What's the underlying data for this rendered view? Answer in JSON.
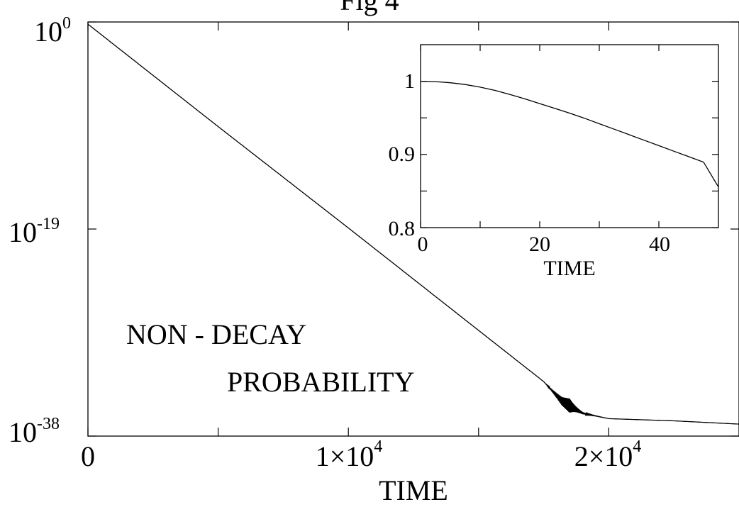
{
  "chart_data": [
    {
      "type": "line",
      "title": "Fig 4",
      "xlabel": "TIME",
      "ylabel": "",
      "y_scale": "log",
      "xlim": [
        0,
        25000
      ],
      "ylim_exponents": [
        -38,
        0
      ],
      "x_tick_values": [
        0,
        10000,
        20000
      ],
      "x_tick_labels": [
        {
          "mantissa": "0",
          "exponent": ""
        },
        {
          "mantissa": "1×10",
          "exponent": "4"
        },
        {
          "mantissa": "2×10",
          "exponent": "4"
        }
      ],
      "x_minor_ticks": [
        5000,
        15000
      ],
      "y_tick_exponents": [
        0,
        -19,
        -38
      ],
      "y_tick_labels": [
        {
          "mantissa": "10",
          "exponent": "0"
        },
        {
          "mantissa": "10",
          "exponent": "-19"
        },
        {
          "mantissa": "10",
          "exponent": "-38"
        }
      ],
      "annotation": {
        "line1": "NON - DECAY",
        "line2": "PROBABILITY"
      },
      "series": [
        {
          "points_log10": [
            [
              0,
              -0.2
            ],
            [
              5000,
              -9.6
            ],
            [
              10000,
              -18.9
            ],
            [
              15000,
              -28.3
            ],
            [
              17500,
              -33.0
            ],
            [
              18200,
              -34.8
            ],
            [
              19000,
              -35.9
            ],
            [
              20000,
              -36.4
            ],
            [
              22500,
              -36.6
            ],
            [
              25000,
              -36.9
            ]
          ],
          "oscillation": {
            "x_start": 17500,
            "x_end": 20000,
            "peak_x": 18500,
            "max_amplitude_decades": 1.3
          }
        }
      ],
      "grid": false
    },
    {
      "type": "line",
      "title": "",
      "xlabel": "TIME",
      "ylabel": "",
      "xlim": [
        0,
        50
      ],
      "ylim": [
        0.8,
        1.05
      ],
      "x_ticks": [
        0,
        20,
        40
      ],
      "x_minor_ticks": [
        10,
        30
      ],
      "y_ticks": [
        "0.8",
        "0.9",
        "1"
      ],
      "series": [
        {
          "x": [
            0,
            2.5,
            5,
            7.5,
            10,
            12.5,
            15,
            17.5,
            20,
            22.5,
            25,
            27.5,
            30,
            32.5,
            35,
            37.5,
            40,
            42.5,
            45,
            47.5,
            50
          ],
          "y": [
            1.0,
            0.9995,
            0.998,
            0.9955,
            0.992,
            0.9875,
            0.982,
            0.976,
            0.9695,
            0.963,
            0.9565,
            0.9495,
            0.942,
            0.9345,
            0.927,
            0.9195,
            0.912,
            0.9045,
            0.897,
            0.8895,
            0.8555
          ]
        }
      ],
      "grid": false
    }
  ]
}
